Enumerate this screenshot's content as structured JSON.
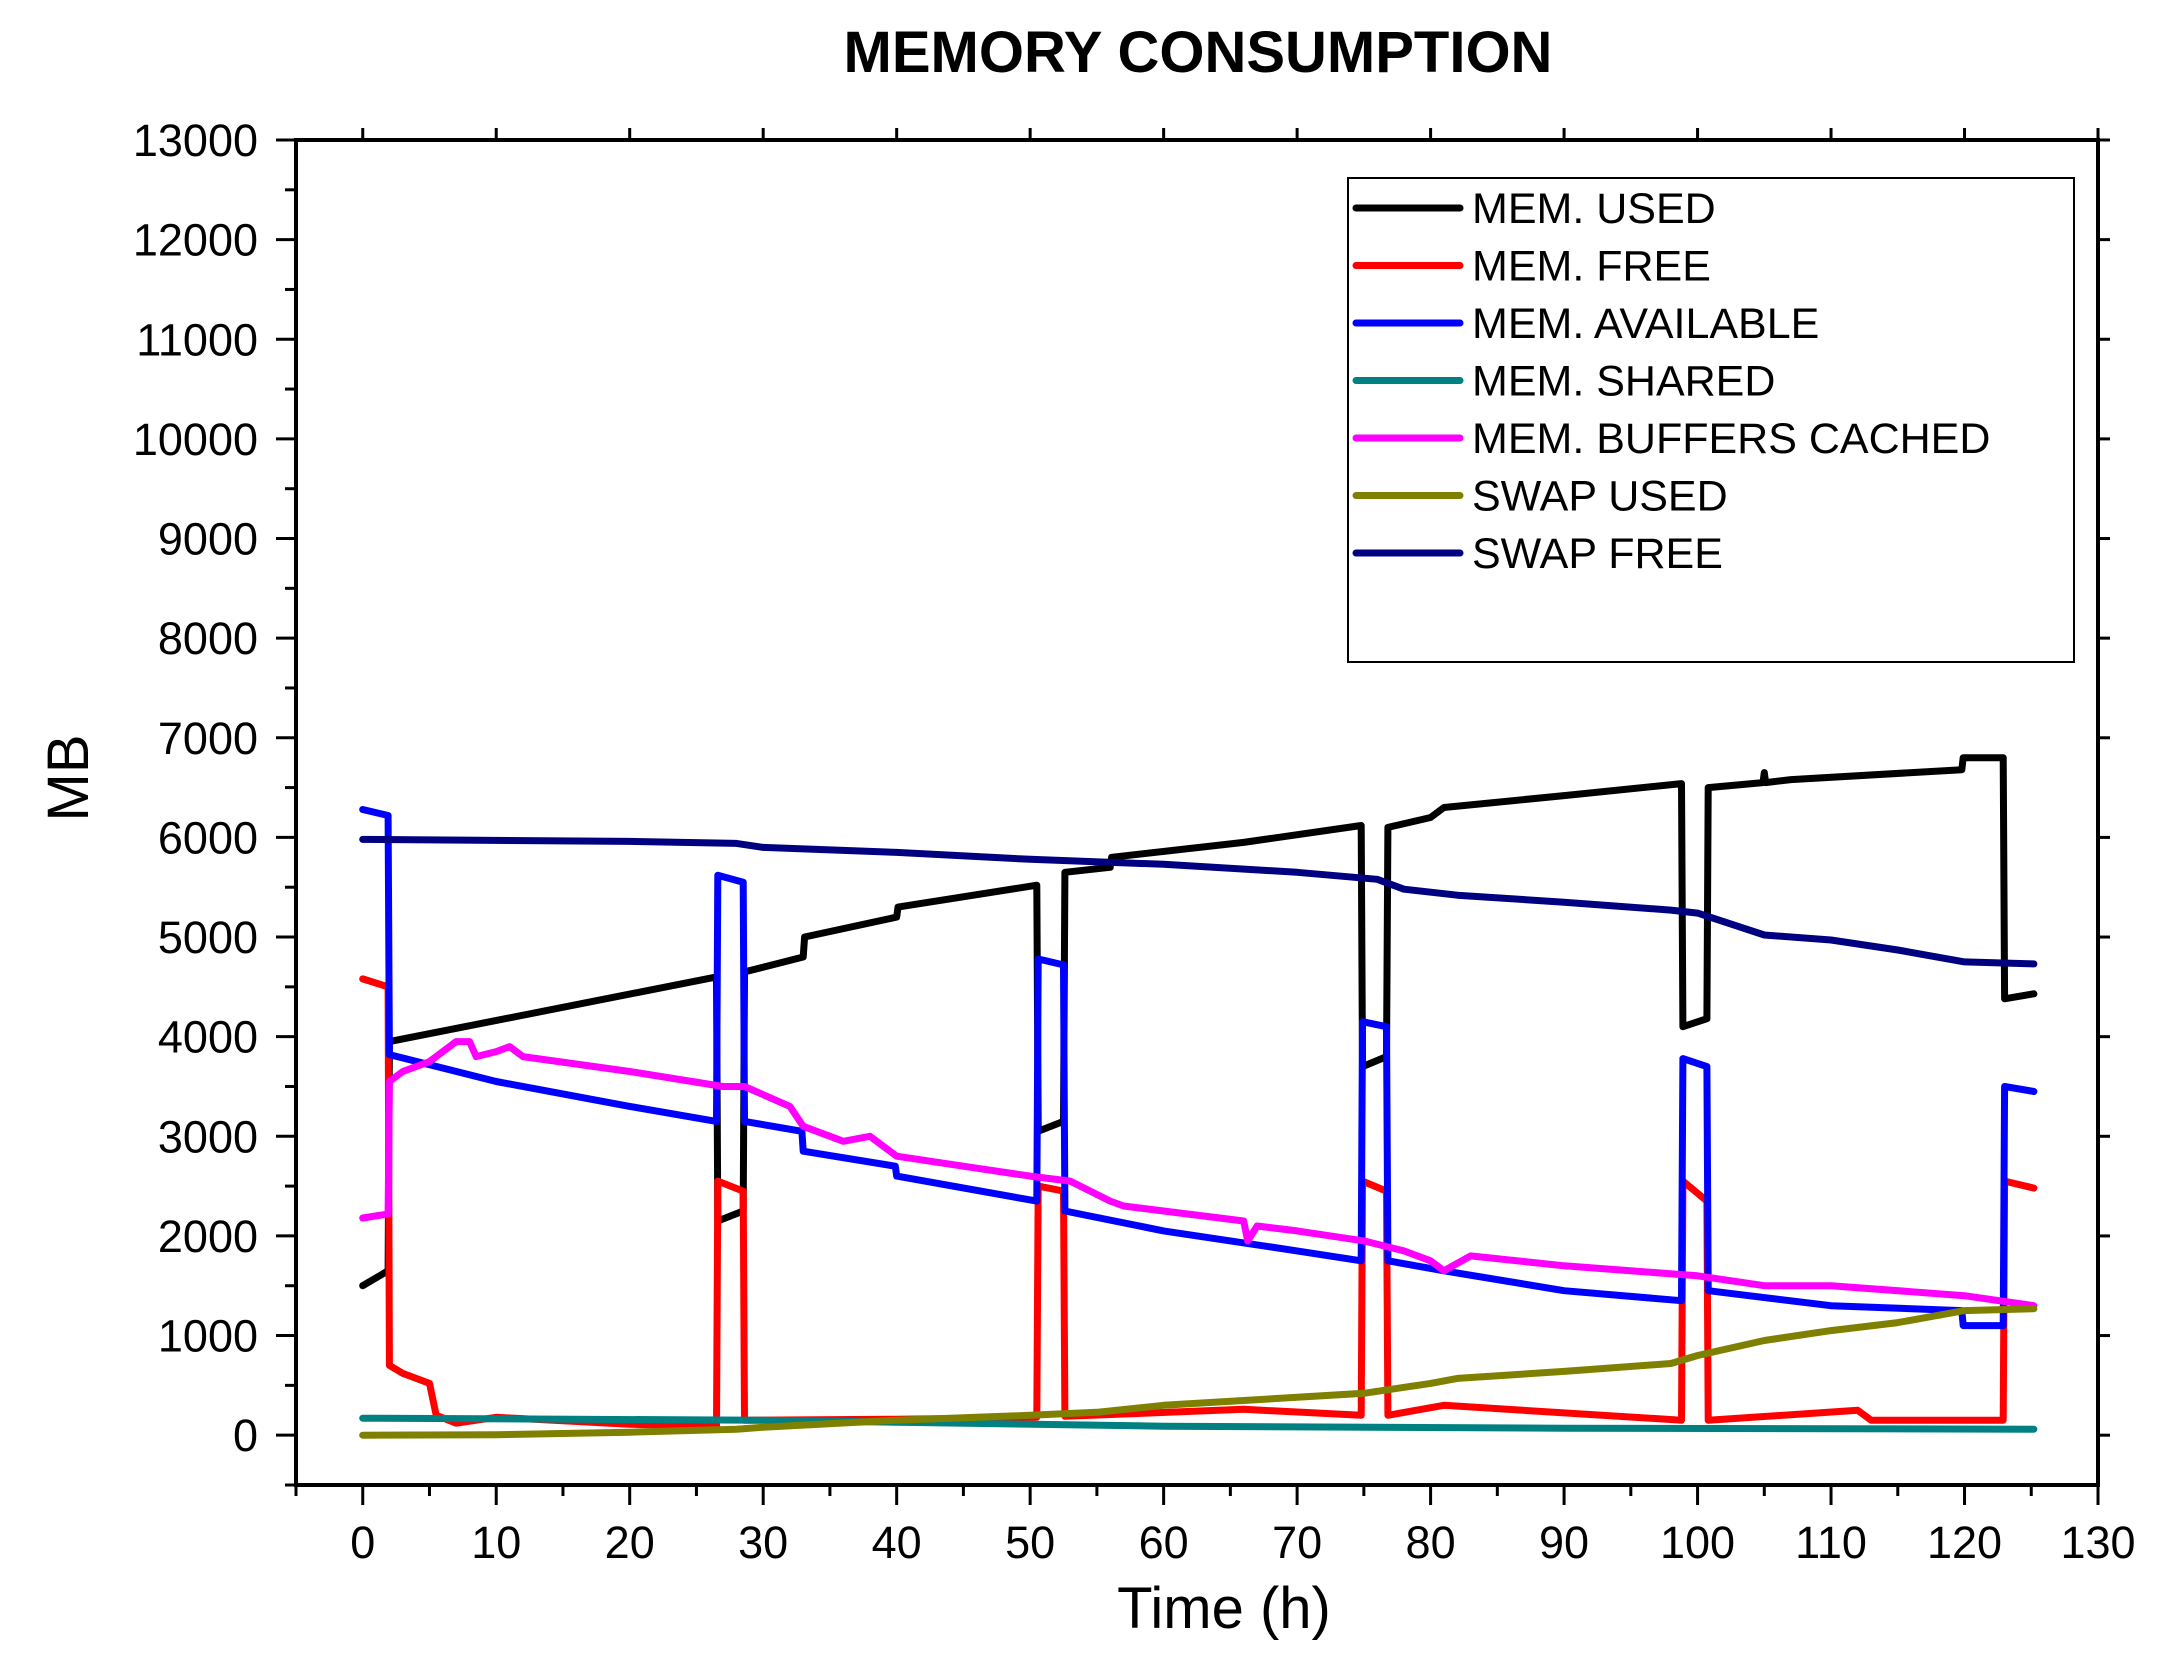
{
  "chart_data": {
    "type": "line",
    "title": "MEMORY CONSUMPTION",
    "xlabel": "Time (h)",
    "ylabel": "MB",
    "xlim": [
      -5,
      130
    ],
    "ylim": [
      -500,
      13000
    ],
    "xticks": [
      0,
      10,
      20,
      30,
      40,
      50,
      60,
      70,
      80,
      90,
      100,
      110,
      120,
      130
    ],
    "yticks": [
      0,
      1000,
      2000,
      3000,
      4000,
      5000,
      6000,
      7000,
      8000,
      9000,
      10000,
      11000,
      12000,
      13000
    ],
    "xtick_labels": [
      "0",
      "10",
      "20",
      "30",
      "40",
      "50",
      "60",
      "70",
      "80",
      "90",
      "100",
      "110",
      "120",
      "130"
    ],
    "ytick_labels": [
      "0",
      "1000",
      "2000",
      "3000",
      "4000",
      "5000",
      "6000",
      "7000",
      "8000",
      "9000",
      "10000",
      "11000",
      "12000",
      "13000"
    ],
    "legend_position": "top-right",
    "series": [
      {
        "name": "MEM. USED",
        "color": "#000000",
        "points": [
          [
            0,
            1500
          ],
          [
            1.9,
            1650
          ],
          [
            2,
            3950
          ],
          [
            26.5,
            4600
          ],
          [
            26.6,
            2150
          ],
          [
            28.5,
            2250
          ],
          [
            28.6,
            4650
          ],
          [
            33,
            4800
          ],
          [
            33.1,
            5000
          ],
          [
            40,
            5200
          ],
          [
            40.1,
            5300
          ],
          [
            50.5,
            5520
          ],
          [
            50.6,
            3050
          ],
          [
            52.5,
            3150
          ],
          [
            52.6,
            5650
          ],
          [
            56,
            5700
          ],
          [
            56.1,
            5800
          ],
          [
            66,
            5950
          ],
          [
            74.8,
            6120
          ],
          [
            74.9,
            3700
          ],
          [
            76.7,
            3800
          ],
          [
            76.8,
            6100
          ],
          [
            80,
            6200
          ],
          [
            81,
            6300
          ],
          [
            90,
            6420
          ],
          [
            98.8,
            6540
          ],
          [
            98.9,
            4100
          ],
          [
            100.7,
            4180
          ],
          [
            100.8,
            6500
          ],
          [
            104.9,
            6550
          ],
          [
            105,
            6650
          ],
          [
            105.1,
            6550
          ],
          [
            107,
            6580
          ],
          [
            119.8,
            6680
          ],
          [
            119.9,
            6800
          ],
          [
            122.9,
            6800
          ],
          [
            123,
            4380
          ],
          [
            125.2,
            4430
          ]
        ]
      },
      {
        "name": "MEM. FREE",
        "color": "#ff0000",
        "points": [
          [
            0,
            4580
          ],
          [
            1.9,
            4500
          ],
          [
            2,
            700
          ],
          [
            3,
            620
          ],
          [
            5,
            520
          ],
          [
            5.5,
            200
          ],
          [
            7,
            120
          ],
          [
            10,
            180
          ],
          [
            20,
            110
          ],
          [
            26.5,
            90
          ],
          [
            26.6,
            2550
          ],
          [
            28.5,
            2450
          ],
          [
            28.6,
            150
          ],
          [
            40,
            160
          ],
          [
            50.5,
            180
          ],
          [
            50.6,
            2500
          ],
          [
            52.5,
            2450
          ],
          [
            52.6,
            190
          ],
          [
            66,
            260
          ],
          [
            74.8,
            200
          ],
          [
            74.9,
            2550
          ],
          [
            76.7,
            2450
          ],
          [
            76.8,
            200
          ],
          [
            81,
            300
          ],
          [
            98.8,
            150
          ],
          [
            98.9,
            2550
          ],
          [
            100.7,
            2350
          ],
          [
            100.8,
            150
          ],
          [
            112,
            250
          ],
          [
            113,
            150
          ],
          [
            122.9,
            150
          ],
          [
            123,
            2550
          ],
          [
            125.2,
            2480
          ]
        ]
      },
      {
        "name": "MEM. AVAILABLE",
        "color": "#0000ff",
        "points": [
          [
            0,
            6280
          ],
          [
            1.9,
            6220
          ],
          [
            2,
            3820
          ],
          [
            10,
            3550
          ],
          [
            20,
            3300
          ],
          [
            26.5,
            3150
          ],
          [
            26.6,
            5620
          ],
          [
            28.5,
            5550
          ],
          [
            28.6,
            3150
          ],
          [
            32.9,
            3050
          ],
          [
            33,
            2850
          ],
          [
            39.9,
            2700
          ],
          [
            40,
            2600
          ],
          [
            50.5,
            2350
          ],
          [
            50.6,
            4780
          ],
          [
            52.5,
            4720
          ],
          [
            52.6,
            2250
          ],
          [
            60,
            2050
          ],
          [
            70,
            1850
          ],
          [
            74.8,
            1750
          ],
          [
            74.9,
            4150
          ],
          [
            76.7,
            4100
          ],
          [
            76.8,
            1750
          ],
          [
            81,
            1650
          ],
          [
            90,
            1450
          ],
          [
            98.8,
            1350
          ],
          [
            98.9,
            3780
          ],
          [
            100.7,
            3700
          ],
          [
            100.8,
            1450
          ],
          [
            110,
            1300
          ],
          [
            119.8,
            1250
          ],
          [
            119.9,
            1100
          ],
          [
            122.9,
            1100
          ],
          [
            123,
            3500
          ],
          [
            125.2,
            3450
          ]
        ]
      },
      {
        "name": "MEM. SHARED",
        "color": "#008080",
        "points": [
          [
            0,
            170
          ],
          [
            30,
            150
          ],
          [
            60,
            90
          ],
          [
            90,
            70
          ],
          [
            125.2,
            60
          ]
        ]
      },
      {
        "name": "MEM. BUFFERS CACHED",
        "color": "#ff00ff",
        "points": [
          [
            0,
            2180
          ],
          [
            1.9,
            2220
          ],
          [
            2,
            3550
          ],
          [
            3,
            3650
          ],
          [
            5,
            3750
          ],
          [
            7,
            3950
          ],
          [
            8,
            3950
          ],
          [
            8.5,
            3800
          ],
          [
            10,
            3850
          ],
          [
            11,
            3900
          ],
          [
            12,
            3800
          ],
          [
            20,
            3650
          ],
          [
            27,
            3500
          ],
          [
            28.6,
            3500
          ],
          [
            32,
            3300
          ],
          [
            33,
            3100
          ],
          [
            36,
            2950
          ],
          [
            38,
            3000
          ],
          [
            40,
            2800
          ],
          [
            45,
            2700
          ],
          [
            50,
            2600
          ],
          [
            53,
            2550
          ],
          [
            56,
            2350
          ],
          [
            57,
            2300
          ],
          [
            60,
            2250
          ],
          [
            66,
            2150
          ],
          [
            66.3,
            1950
          ],
          [
            67,
            2100
          ],
          [
            70,
            2050
          ],
          [
            75,
            1950
          ],
          [
            78,
            1850
          ],
          [
            80,
            1750
          ],
          [
            81,
            1650
          ],
          [
            83,
            1800
          ],
          [
            90,
            1700
          ],
          [
            100,
            1600
          ],
          [
            105,
            1500
          ],
          [
            110,
            1500
          ],
          [
            120,
            1400
          ],
          [
            125.2,
            1300
          ]
        ]
      },
      {
        "name": "SWAP USED",
        "color": "#808000",
        "points": [
          [
            0,
            0
          ],
          [
            10,
            5
          ],
          [
            20,
            30
          ],
          [
            28,
            60
          ],
          [
            30,
            80
          ],
          [
            40,
            150
          ],
          [
            50,
            200
          ],
          [
            55,
            230
          ],
          [
            60,
            300
          ],
          [
            70,
            380
          ],
          [
            75,
            420
          ],
          [
            80,
            520
          ],
          [
            82,
            570
          ],
          [
            90,
            640
          ],
          [
            98,
            720
          ],
          [
            100,
            800
          ],
          [
            105,
            950
          ],
          [
            110,
            1050
          ],
          [
            115,
            1130
          ],
          [
            120,
            1250
          ],
          [
            125.2,
            1270
          ]
        ]
      },
      {
        "name": "SWAP FREE",
        "color": "#000080",
        "points": [
          [
            0,
            5980
          ],
          [
            20,
            5960
          ],
          [
            28,
            5940
          ],
          [
            30,
            5900
          ],
          [
            40,
            5850
          ],
          [
            50,
            5780
          ],
          [
            60,
            5730
          ],
          [
            70,
            5650
          ],
          [
            76,
            5580
          ],
          [
            78,
            5480
          ],
          [
            82,
            5420
          ],
          [
            90,
            5350
          ],
          [
            98,
            5270
          ],
          [
            100,
            5240
          ],
          [
            105,
            5020
          ],
          [
            110,
            4970
          ],
          [
            115,
            4870
          ],
          [
            120,
            4750
          ],
          [
            125.2,
            4730
          ]
        ]
      }
    ]
  }
}
